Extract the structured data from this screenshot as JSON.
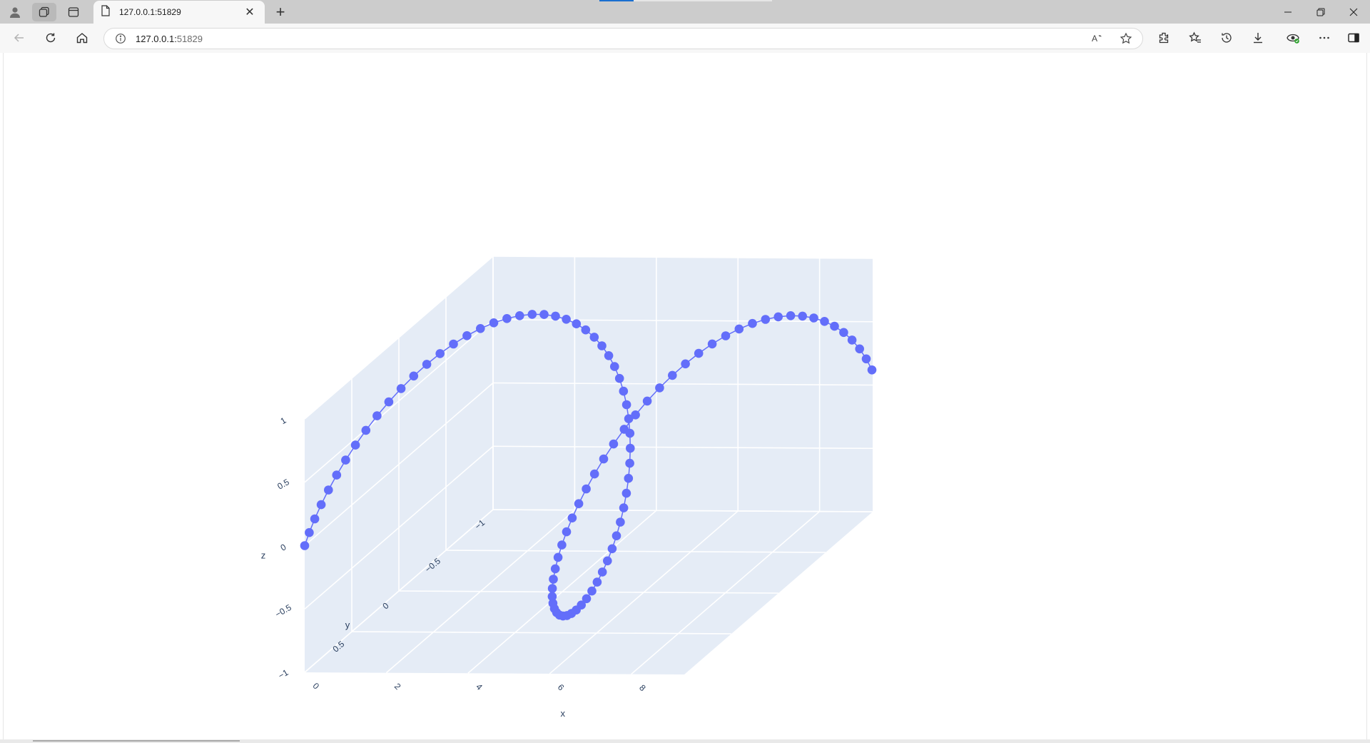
{
  "browser": {
    "tab_title": "127.0.0.1:51829",
    "url_host": "127.0.0.1:",
    "url_port": "51829",
    "new_tab_symbol": "+",
    "close_symbol": "✕",
    "icons": [
      "profile-icon",
      "workspaces-icon",
      "vertical-tabs-icon",
      "page-icon",
      "back-icon",
      "reload-icon",
      "home-icon",
      "site-info-icon",
      "read-aloud-icon",
      "favorite-star-icon",
      "extensions-icon",
      "favorites-icon",
      "history-icon",
      "downloads-icon",
      "copilot-icon",
      "more-icon",
      "sidebar-icon",
      "minimize-icon",
      "restore-icon",
      "close-window-icon"
    ]
  },
  "chart_data": {
    "type": "scatter3d",
    "mode": "lines+markers",
    "marker_color": "#636efa",
    "x_axis": {
      "title": "x",
      "ticks": [
        "0",
        "2",
        "4",
        "6",
        "8"
      ],
      "range": [
        0,
        9.3
      ]
    },
    "y_axis": {
      "title": "y",
      "ticks": [
        "−1",
        "−0.5",
        "0",
        "0.5"
      ],
      "range": [
        -1,
        1
      ]
    },
    "z_axis": {
      "title": "z",
      "ticks": [
        "−1",
        "−0.5",
        "0",
        "0.5",
        "1"
      ],
      "range": [
        -1,
        1
      ]
    },
    "series": [
      {
        "t_start": 0,
        "t_step": 0.1,
        "count": 94,
        "x": "t",
        "y": "cos(t)",
        "z": "sin(t)"
      }
    ],
    "background": "#e5ecf6",
    "grid": true
  }
}
